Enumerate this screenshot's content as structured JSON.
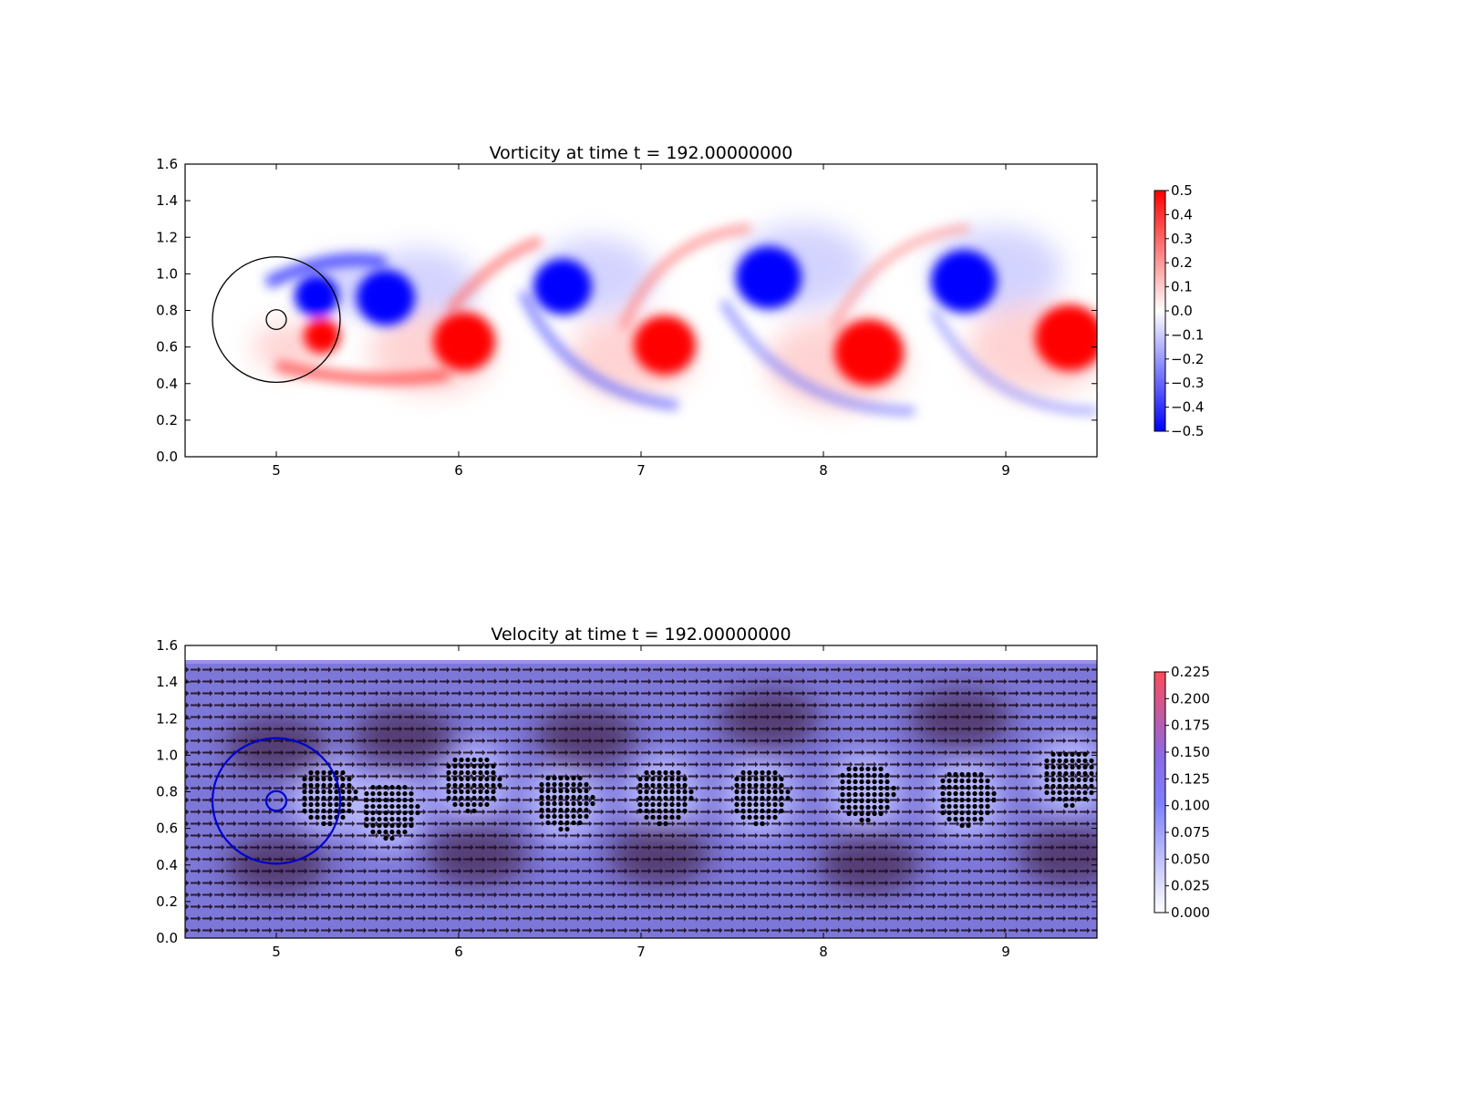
{
  "colors": {
    "positive": "#ff0000",
    "negative": "#0000ff",
    "velocity_low": "#ffffff",
    "velocity_mid": "#8080ff",
    "velocity_high": "#ff4040",
    "vector": "#1a0a1a",
    "marker_top": "#000000",
    "marker_bottom": "#0000cc"
  },
  "chart_data": [
    {
      "type": "heatmap",
      "title": "Vorticity at time t =   192.00000000",
      "xlabel": "",
      "ylabel": "",
      "xlim": [
        4.5,
        9.5
      ],
      "ylim": [
        0.0,
        1.6
      ],
      "x_ticks": [
        "5",
        "6",
        "7",
        "8",
        "9"
      ],
      "y_ticks": [
        "0.0",
        "0.2",
        "0.4",
        "0.6",
        "0.8",
        "1.0",
        "1.2",
        "1.4",
        "1.6"
      ],
      "colormap": "bwr",
      "colorbar": {
        "range": [
          -0.5,
          0.5
        ],
        "ticks": [
          "−0.5",
          "−0.4",
          "−0.3",
          "−0.2",
          "−0.1",
          "0.0",
          "0.1",
          "0.2",
          "0.3",
          "0.4",
          "0.5"
        ]
      },
      "vortices": [
        {
          "x": 5.22,
          "y": 0.88,
          "sign": -1,
          "r": 0.12
        },
        {
          "x": 5.25,
          "y": 0.66,
          "sign": 1,
          "r": 0.1
        },
        {
          "x": 5.6,
          "y": 0.87,
          "sign": -1,
          "r": 0.16
        },
        {
          "x": 6.03,
          "y": 0.63,
          "sign": 1,
          "r": 0.17
        },
        {
          "x": 6.57,
          "y": 0.93,
          "sign": -1,
          "r": 0.16
        },
        {
          "x": 7.13,
          "y": 0.61,
          "sign": 1,
          "r": 0.17
        },
        {
          "x": 7.7,
          "y": 0.98,
          "sign": -1,
          "r": 0.18
        },
        {
          "x": 8.25,
          "y": 0.57,
          "sign": 1,
          "r": 0.19
        },
        {
          "x": 8.77,
          "y": 0.96,
          "sign": -1,
          "r": 0.18
        },
        {
          "x": 9.35,
          "y": 0.65,
          "sign": 1,
          "r": 0.19
        }
      ],
      "circles": [
        {
          "x": 5.0,
          "y": 0.75,
          "r": 0.35
        },
        {
          "x": 5.0,
          "y": 0.75,
          "r": 0.055
        }
      ]
    },
    {
      "type": "heatmap",
      "title": "Velocity at time t =   192.00000000",
      "xlabel": "",
      "ylabel": "",
      "xlim": [
        4.5,
        9.5
      ],
      "ylim": [
        0.0,
        1.6
      ],
      "x_ticks": [
        "5",
        "6",
        "7",
        "8",
        "9"
      ],
      "y_ticks": [
        "0.0",
        "0.2",
        "0.4",
        "0.6",
        "0.8",
        "1.0",
        "1.2",
        "1.4",
        "1.6"
      ],
      "colormap": "white-blue-red",
      "colorbar": {
        "range": [
          0.0,
          0.225
        ],
        "ticks": [
          "0.000",
          "0.025",
          "0.050",
          "0.075",
          "0.100",
          "0.125",
          "0.150",
          "0.175",
          "0.200",
          "0.225"
        ]
      },
      "domain_top": 1.52,
      "marker_clusters": [
        {
          "x": 5.28,
          "y": 0.78
        },
        {
          "x": 5.62,
          "y": 0.7
        },
        {
          "x": 6.07,
          "y": 0.85
        },
        {
          "x": 6.58,
          "y": 0.75
        },
        {
          "x": 7.12,
          "y": 0.78
        },
        {
          "x": 7.65,
          "y": 0.78
        },
        {
          "x": 8.23,
          "y": 0.8
        },
        {
          "x": 8.78,
          "y": 0.77
        },
        {
          "x": 9.35,
          "y": 0.88
        }
      ],
      "circles": [
        {
          "x": 5.0,
          "y": 0.75,
          "r": 0.35
        },
        {
          "x": 5.0,
          "y": 0.75,
          "r": 0.055
        }
      ]
    }
  ]
}
